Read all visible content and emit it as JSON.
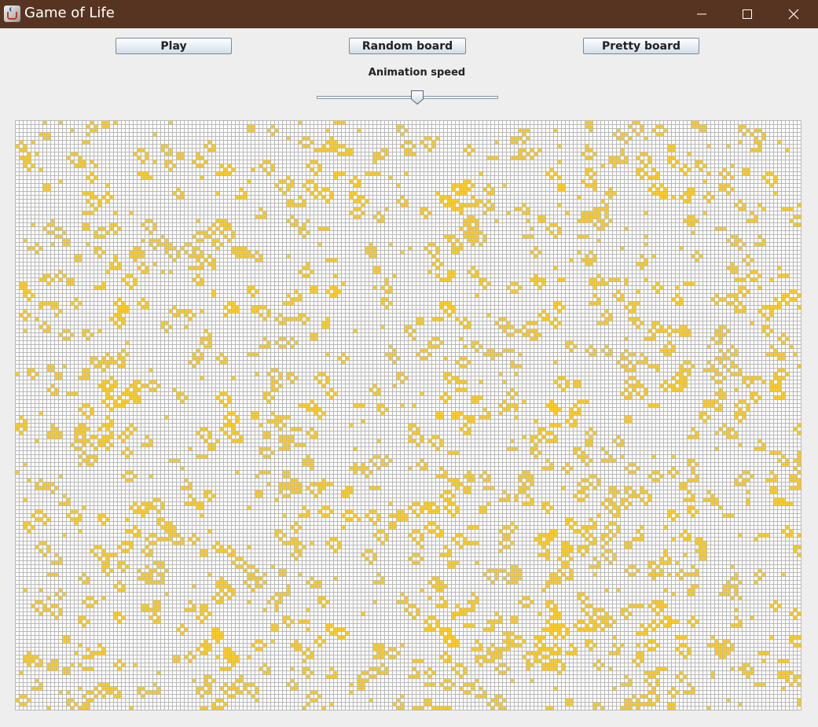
{
  "window": {
    "title": "Game of Life",
    "titlebar_color": "#573421",
    "controls": [
      "minimize-icon",
      "maximize-icon",
      "close-icon"
    ]
  },
  "toolbar": {
    "play_label": "Play",
    "random_label": "Random board",
    "pretty_label": "Pretty board"
  },
  "speed": {
    "label": "Animation speed",
    "value_fraction": 0.56
  },
  "board": {
    "columns": 200,
    "rows": 150,
    "live_cell_color": "#ffc400",
    "grid_line_color": "#b8b8b8",
    "dead_cell_color": "#ffffff"
  }
}
